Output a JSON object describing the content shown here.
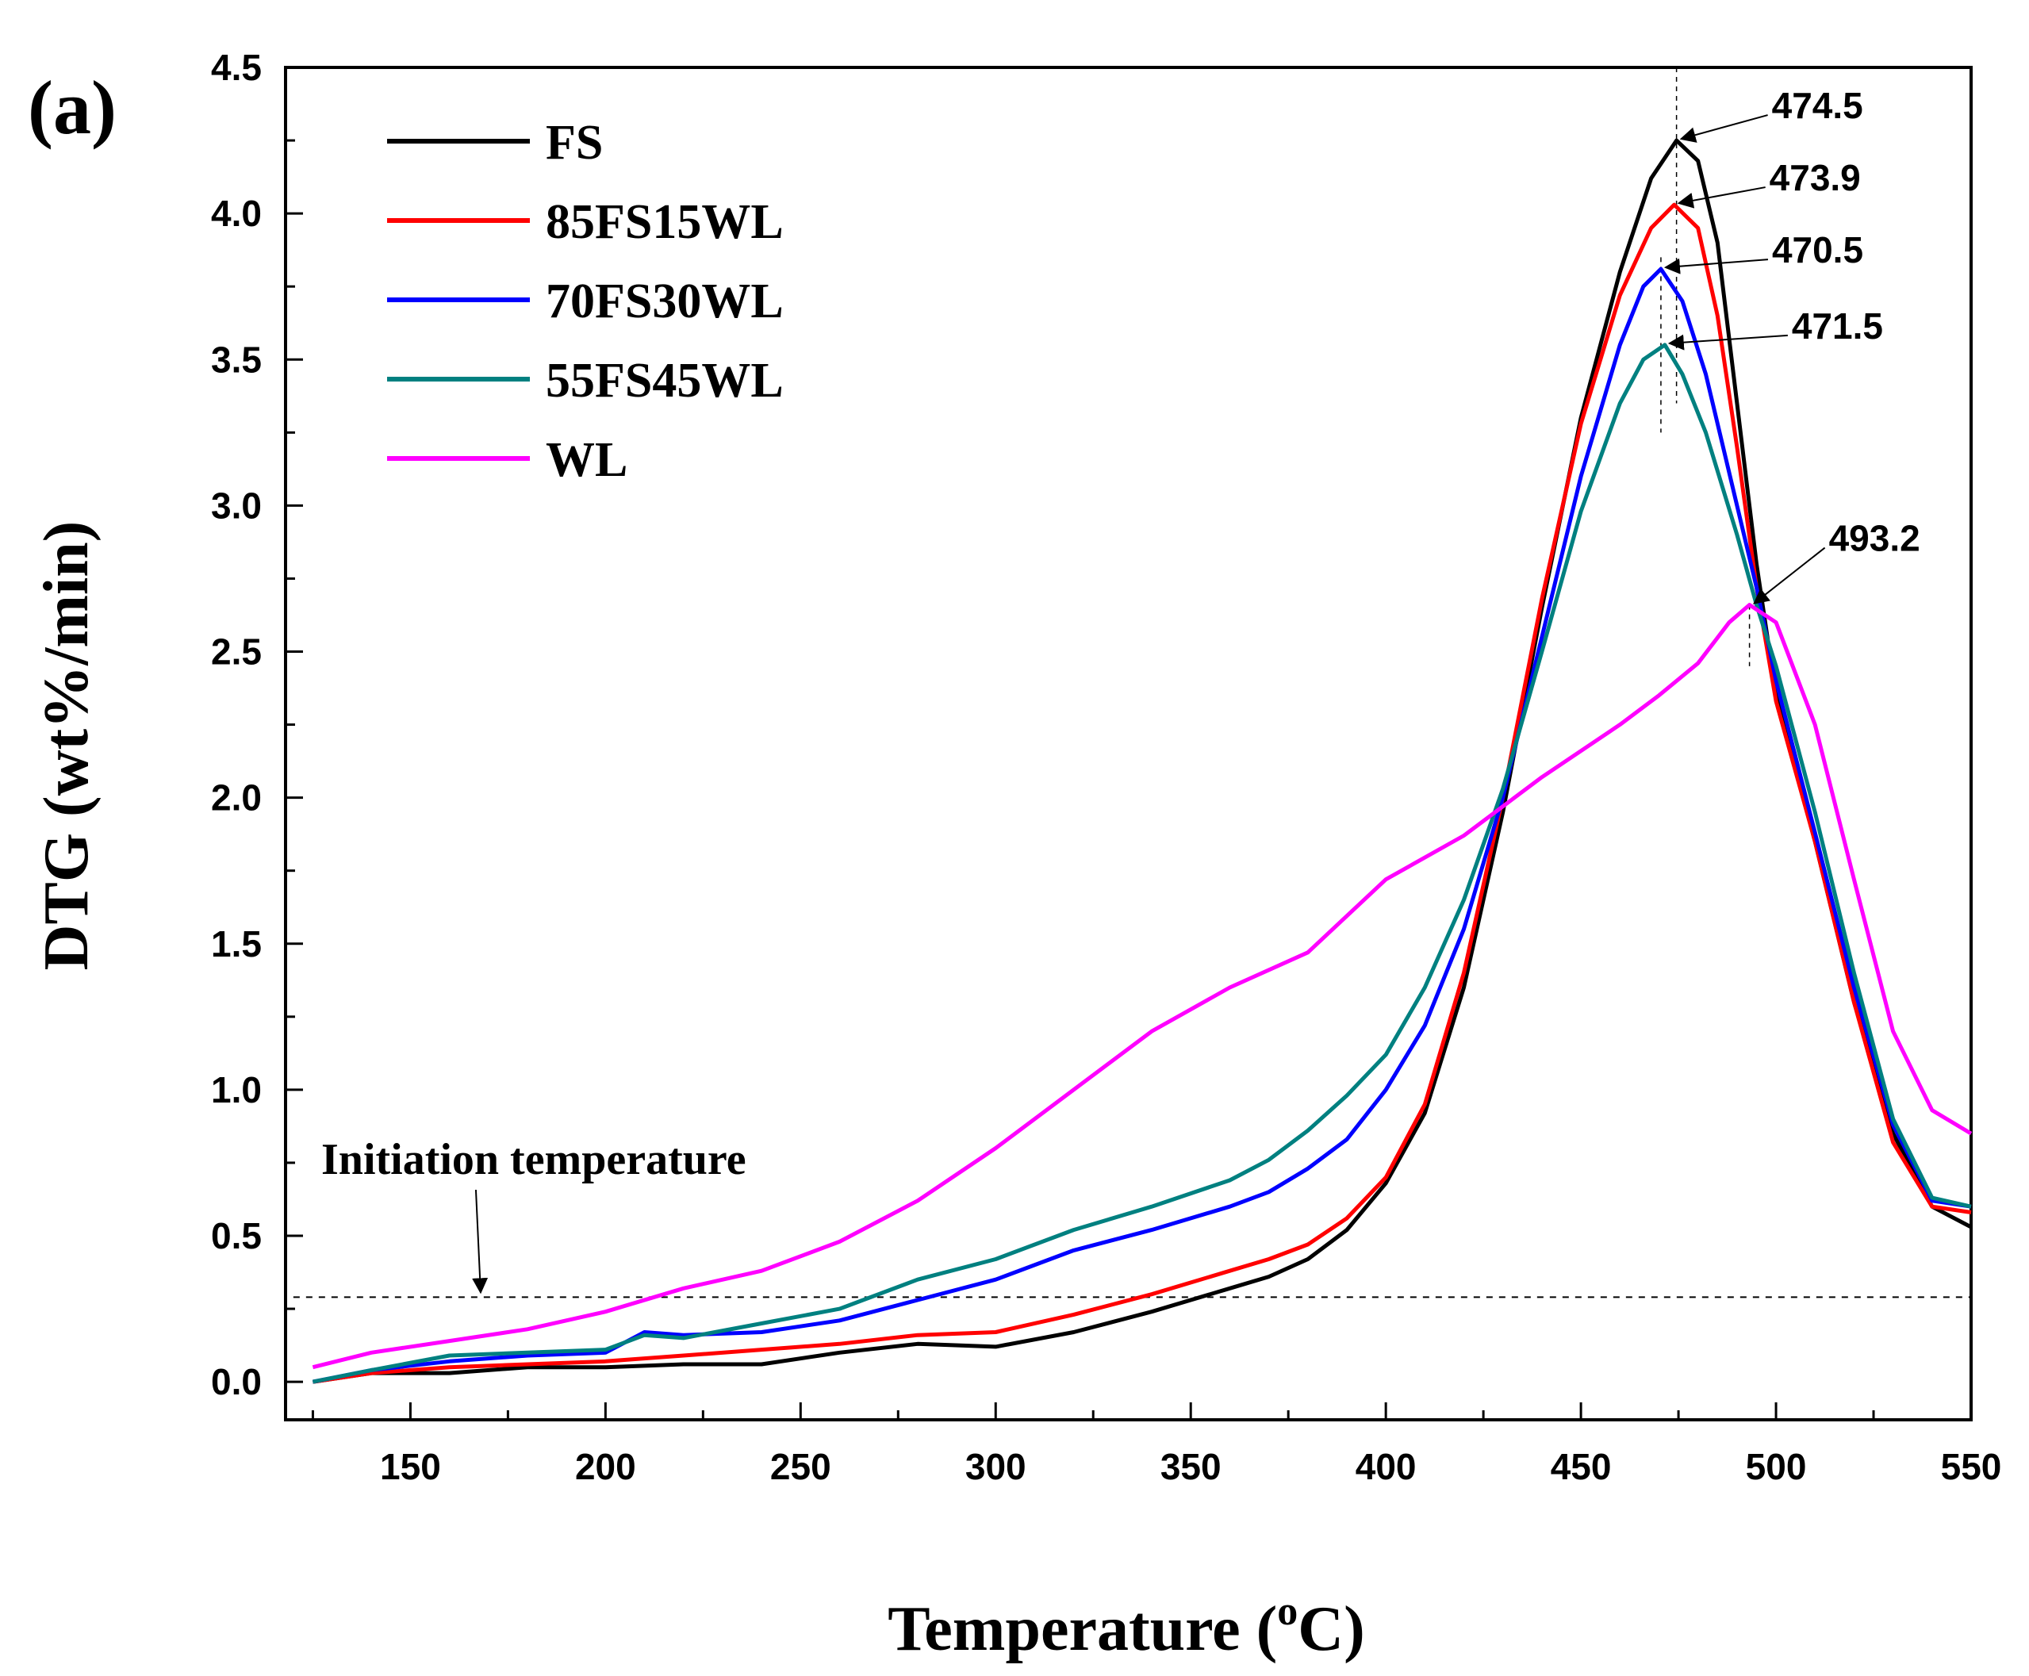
{
  "chart_data": {
    "type": "line",
    "panel_label": "(a)",
    "xlabel": "Temperature",
    "xlabel_unit": "(°C)",
    "xlabel_unit_open": "(",
    "xlabel_unit_sup": "o",
    "xlabel_unit_close": "C)",
    "ylabel": "DTG (wt%/min)",
    "xlim": [
      118,
      550
    ],
    "ylim": [
      -0.13,
      4.5
    ],
    "xticks": [
      150,
      200,
      250,
      300,
      350,
      400,
      450,
      500,
      550
    ],
    "yticks": [
      0.0,
      0.5,
      1.0,
      1.5,
      2.0,
      2.5,
      3.0,
      3.5,
      4.0,
      4.5
    ],
    "legend_position": "top-left",
    "series": [
      {
        "name": "FS",
        "color": "#000000",
        "points": [
          [
            125,
            0.0
          ],
          [
            140,
            0.03
          ],
          [
            160,
            0.03
          ],
          [
            180,
            0.05
          ],
          [
            200,
            0.05
          ],
          [
            220,
            0.06
          ],
          [
            240,
            0.06
          ],
          [
            260,
            0.1
          ],
          [
            280,
            0.13
          ],
          [
            300,
            0.12
          ],
          [
            320,
            0.17
          ],
          [
            340,
            0.24
          ],
          [
            360,
            0.32
          ],
          [
            370,
            0.36
          ],
          [
            380,
            0.42
          ],
          [
            390,
            0.52
          ],
          [
            400,
            0.68
          ],
          [
            410,
            0.92
          ],
          [
            420,
            1.35
          ],
          [
            430,
            1.95
          ],
          [
            440,
            2.65
          ],
          [
            450,
            3.3
          ],
          [
            460,
            3.8
          ],
          [
            468,
            4.12
          ],
          [
            474.5,
            4.25
          ],
          [
            480,
            4.18
          ],
          [
            485,
            3.9
          ],
          [
            490,
            3.35
          ],
          [
            495,
            2.8
          ],
          [
            500,
            2.35
          ],
          [
            510,
            1.85
          ],
          [
            520,
            1.3
          ],
          [
            530,
            0.85
          ],
          [
            540,
            0.6
          ],
          [
            550,
            0.53
          ]
        ]
      },
      {
        "name": "85FS15WL",
        "color": "#ff0000",
        "points": [
          [
            125,
            0.0
          ],
          [
            140,
            0.03
          ],
          [
            160,
            0.05
          ],
          [
            180,
            0.06
          ],
          [
            200,
            0.07
          ],
          [
            220,
            0.09
          ],
          [
            240,
            0.11
          ],
          [
            260,
            0.13
          ],
          [
            280,
            0.16
          ],
          [
            300,
            0.17
          ],
          [
            320,
            0.23
          ],
          [
            340,
            0.3
          ],
          [
            360,
            0.38
          ],
          [
            370,
            0.42
          ],
          [
            380,
            0.47
          ],
          [
            390,
            0.56
          ],
          [
            400,
            0.7
          ],
          [
            410,
            0.95
          ],
          [
            420,
            1.4
          ],
          [
            430,
            2.0
          ],
          [
            440,
            2.68
          ],
          [
            450,
            3.28
          ],
          [
            460,
            3.72
          ],
          [
            468,
            3.95
          ],
          [
            473.9,
            4.03
          ],
          [
            480,
            3.95
          ],
          [
            485,
            3.65
          ],
          [
            490,
            3.2
          ],
          [
            495,
            2.72
          ],
          [
            500,
            2.33
          ],
          [
            510,
            1.85
          ],
          [
            520,
            1.3
          ],
          [
            530,
            0.82
          ],
          [
            540,
            0.6
          ],
          [
            550,
            0.58
          ]
        ]
      },
      {
        "name": "70FS30WL",
        "color": "#0000ff",
        "points": [
          [
            125,
            0.0
          ],
          [
            140,
            0.04
          ],
          [
            160,
            0.07
          ],
          [
            180,
            0.09
          ],
          [
            200,
            0.1
          ],
          [
            210,
            0.17
          ],
          [
            220,
            0.16
          ],
          [
            240,
            0.17
          ],
          [
            260,
            0.21
          ],
          [
            280,
            0.28
          ],
          [
            300,
            0.35
          ],
          [
            320,
            0.45
          ],
          [
            340,
            0.52
          ],
          [
            360,
            0.6
          ],
          [
            370,
            0.65
          ],
          [
            380,
            0.73
          ],
          [
            390,
            0.83
          ],
          [
            400,
            1.0
          ],
          [
            410,
            1.22
          ],
          [
            420,
            1.55
          ],
          [
            430,
            2.0
          ],
          [
            440,
            2.55
          ],
          [
            450,
            3.1
          ],
          [
            460,
            3.55
          ],
          [
            466,
            3.75
          ],
          [
            470.5,
            3.81
          ],
          [
            476,
            3.7
          ],
          [
            482,
            3.45
          ],
          [
            490,
            3.0
          ],
          [
            495,
            2.72
          ],
          [
            500,
            2.4
          ],
          [
            510,
            1.88
          ],
          [
            520,
            1.35
          ],
          [
            530,
            0.88
          ],
          [
            540,
            0.62
          ],
          [
            550,
            0.6
          ]
        ]
      },
      {
        "name": "55FS45WL",
        "color": "#008080",
        "points": [
          [
            125,
            0.0
          ],
          [
            140,
            0.04
          ],
          [
            160,
            0.09
          ],
          [
            180,
            0.1
          ],
          [
            200,
            0.11
          ],
          [
            210,
            0.16
          ],
          [
            220,
            0.15
          ],
          [
            240,
            0.2
          ],
          [
            260,
            0.25
          ],
          [
            280,
            0.35
          ],
          [
            300,
            0.42
          ],
          [
            320,
            0.52
          ],
          [
            340,
            0.6
          ],
          [
            360,
            0.69
          ],
          [
            370,
            0.76
          ],
          [
            380,
            0.86
          ],
          [
            390,
            0.98
          ],
          [
            400,
            1.12
          ],
          [
            410,
            1.35
          ],
          [
            420,
            1.65
          ],
          [
            430,
            2.03
          ],
          [
            440,
            2.5
          ],
          [
            450,
            2.98
          ],
          [
            460,
            3.35
          ],
          [
            466,
            3.5
          ],
          [
            471.5,
            3.55
          ],
          [
            476,
            3.45
          ],
          [
            482,
            3.25
          ],
          [
            490,
            2.9
          ],
          [
            495,
            2.66
          ],
          [
            500,
            2.45
          ],
          [
            510,
            1.95
          ],
          [
            520,
            1.4
          ],
          [
            530,
            0.9
          ],
          [
            540,
            0.63
          ],
          [
            550,
            0.6
          ]
        ]
      },
      {
        "name": "WL",
        "color": "#ff00ff",
        "points": [
          [
            125,
            0.05
          ],
          [
            140,
            0.1
          ],
          [
            160,
            0.14
          ],
          [
            180,
            0.18
          ],
          [
            200,
            0.24
          ],
          [
            220,
            0.32
          ],
          [
            240,
            0.38
          ],
          [
            260,
            0.48
          ],
          [
            280,
            0.62
          ],
          [
            300,
            0.8
          ],
          [
            320,
            1.0
          ],
          [
            340,
            1.2
          ],
          [
            360,
            1.35
          ],
          [
            380,
            1.47
          ],
          [
            400,
            1.72
          ],
          [
            420,
            1.87
          ],
          [
            440,
            2.07
          ],
          [
            460,
            2.25
          ],
          [
            470,
            2.35
          ],
          [
            480,
            2.46
          ],
          [
            488,
            2.6
          ],
          [
            493.2,
            2.66
          ],
          [
            500,
            2.6
          ],
          [
            510,
            2.25
          ],
          [
            520,
            1.72
          ],
          [
            530,
            1.2
          ],
          [
            540,
            0.93
          ],
          [
            550,
            0.85
          ]
        ]
      }
    ],
    "annotations": {
      "initiation_label": "Initiation temperature",
      "initiation_threshold": 0.29,
      "initiation_arrow_x": 168,
      "peaks": [
        {
          "label": "474.5",
          "x": 474.5,
          "y": 4.25
        },
        {
          "label": "473.9",
          "x": 473.9,
          "y": 4.03
        },
        {
          "label": "470.5",
          "x": 470.5,
          "y": 3.81
        },
        {
          "label": "471.5",
          "x": 471.5,
          "y": 3.55
        },
        {
          "label": "493.2",
          "x": 493.2,
          "y": 2.66
        }
      ]
    }
  }
}
